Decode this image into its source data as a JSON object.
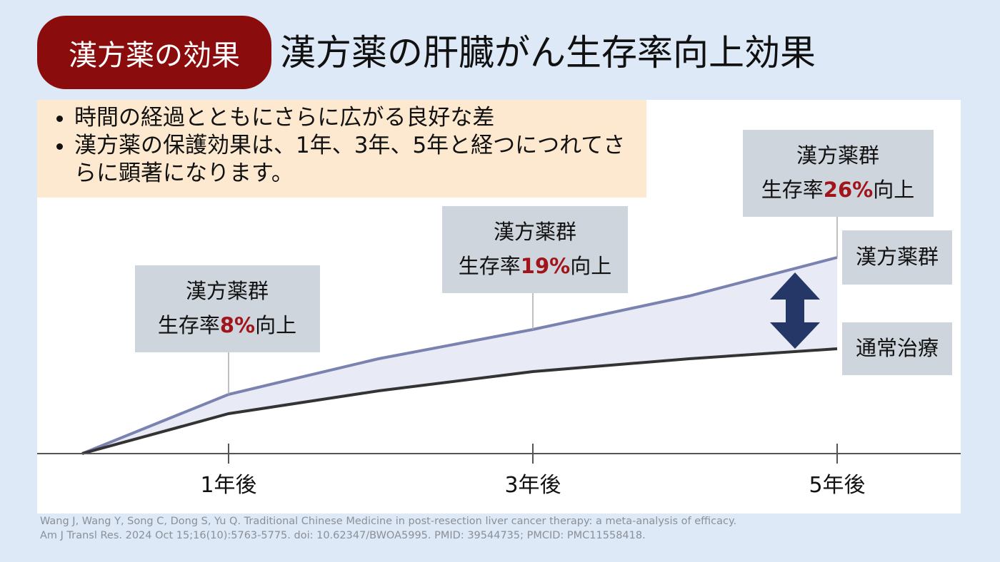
{
  "header": {
    "badge": "漢方薬の効果",
    "title": "漢方薬の肝臓がん生存率向上効果"
  },
  "bullets": [
    "時間の経過とともにさらに広がる良好な差",
    "漢方薬の保護効果は、1年、3年、5年と経つにつれてさらに顕著になります。"
  ],
  "annotations": [
    {
      "group": "漢方薬群",
      "prefix": "生存率",
      "value": "8%",
      "suffix": "向上"
    },
    {
      "group": "漢方薬群",
      "prefix": "生存率",
      "value": "19%",
      "suffix": "向上"
    },
    {
      "group": "漢方薬群",
      "prefix": "生存率",
      "value": "26%",
      "suffix": "向上"
    }
  ],
  "x_labels": [
    "1年後",
    "3年後",
    "5年後"
  ],
  "legend": [
    "漢方薬群",
    "通常治療"
  ],
  "citation": [
    "Wang J, Wang Y, Song C, Dong S, Yu Q. Traditional Chinese Medicine in post-resection liver cancer therapy: a meta-analysis of efficacy.",
    "Am J Transl Res. 2024 Oct 15;16(10):5763-5775. doi: 10.62347/BWOA5995. PMID: 39544735; PMCID: PMC11558418."
  ]
}
